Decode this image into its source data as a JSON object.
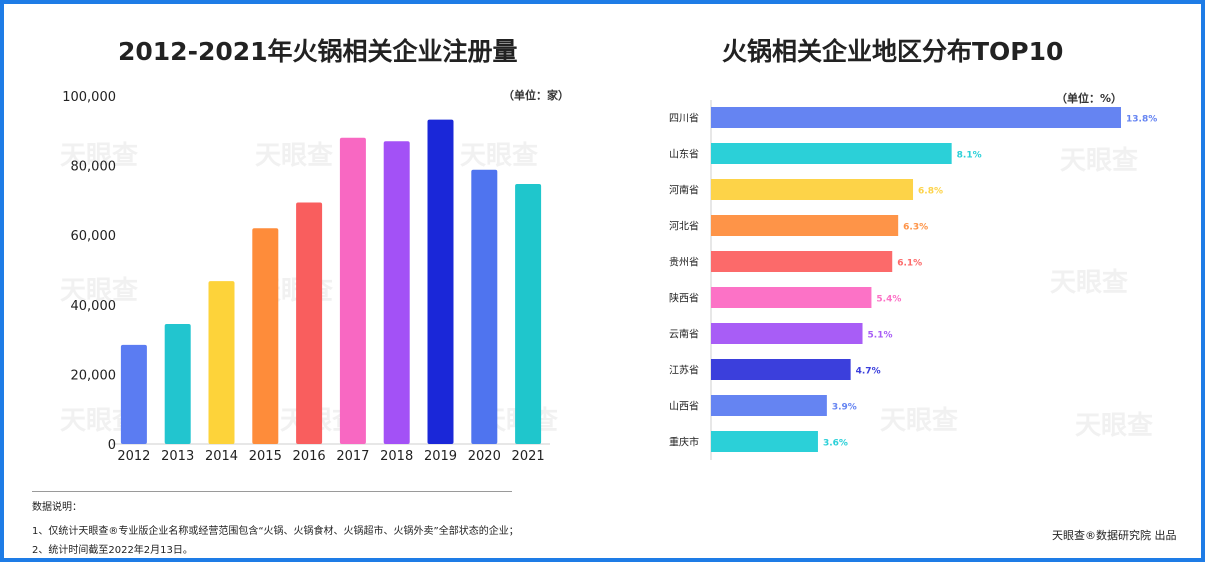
{
  "watermark": "天眼查",
  "left_chart": {
    "title": "2012-2021年火锅相关企业注册量",
    "unit_label": "（单位：家）"
  },
  "right_chart": {
    "title": "火锅相关企业地区分布TOP10",
    "unit_label": "（单位：%）"
  },
  "notes": {
    "title": "数据说明：",
    "line1": "1、仅统计天眼查®专业版企业名称或经营范围包含“火锅、火锅食材、火锅超市、火锅外卖”全部状态的企业；",
    "line2": "2、统计时间截至2022年2月13日。"
  },
  "credit": "天眼查®数据研究院 出品",
  "chart_data": [
    {
      "type": "bar",
      "title": "2012-2021年火锅相关企业注册量",
      "xlabel": "",
      "ylabel": "",
      "unit": "家",
      "categories": [
        "2012",
        "2013",
        "2014",
        "2015",
        "2016",
        "2017",
        "2018",
        "2019",
        "2020",
        "2021"
      ],
      "values": [
        28500,
        34500,
        46800,
        62000,
        69400,
        88000,
        87000,
        93200,
        78800,
        74700
      ],
      "colors": [
        "#5b7cf2",
        "#22c5cf",
        "#fdd33a",
        "#fe8c3a",
        "#f95e5e",
        "#f868c2",
        "#a351f6",
        "#1a27d8",
        "#4f74ef",
        "#1fc6cc"
      ],
      "ylim": [
        0,
        100000
      ],
      "yticks": [
        "0",
        "20,000",
        "40,000",
        "60,000",
        "80,000",
        "100,000"
      ],
      "grid": false
    },
    {
      "type": "bar",
      "orientation": "horizontal",
      "title": "火锅相关企业地区分布TOP10",
      "unit": "%",
      "categories": [
        "四川省",
        "山东省",
        "河南省",
        "河北省",
        "贵州省",
        "陕西省",
        "云南省",
        "江苏省",
        "山西省",
        "重庆市"
      ],
      "values": [
        13.8,
        8.1,
        6.8,
        6.3,
        6.1,
        5.4,
        5.1,
        4.7,
        3.9,
        3.6
      ],
      "labels": [
        "13.8%",
        "8.1%",
        "6.8%",
        "6.3%",
        "6.1%",
        "5.4%",
        "5.1%",
        "4.7%",
        "3.9%",
        "3.6%"
      ],
      "colors": [
        "#6584f2",
        "#2bd0d8",
        "#fdd348",
        "#fe9448",
        "#fc6a6a",
        "#fc72c6",
        "#a85df6",
        "#3b3fdc",
        "#6584f2",
        "#2bd0d8"
      ],
      "xlim": [
        0,
        13.8
      ]
    }
  ]
}
